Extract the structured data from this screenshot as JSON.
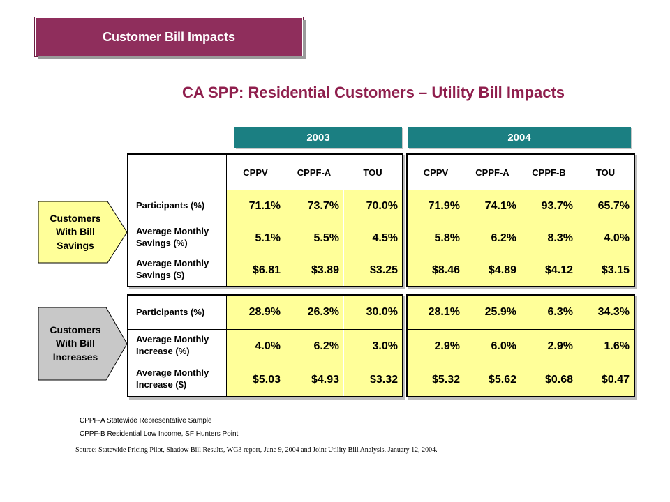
{
  "header": {
    "badge": "Customer Bill Impacts"
  },
  "title": "CA SPP: Residential Customers – Utility Bill Impacts",
  "years": {
    "y2003": "2003",
    "y2004": "2004"
  },
  "columns_2003": [
    "CPPV",
    "CPPF-A",
    "TOU"
  ],
  "columns_2004": [
    "CPPV",
    "CPPF-A",
    "CPPF-B",
    "TOU"
  ],
  "savings": {
    "side_label": {
      "line1": "Customers",
      "line2": "With Bill",
      "line3": "Savings"
    },
    "rows": [
      {
        "label_1": "Participants (%)",
        "label_2": "",
        "v2003": [
          "71.1%",
          "73.7%",
          "70.0%"
        ],
        "v2004": [
          "71.9%",
          "74.1%",
          "93.7%",
          "65.7%"
        ]
      },
      {
        "label_1": "Average Monthly",
        "label_2": "Savings (%)",
        "v2003": [
          "5.1%",
          "5.5%",
          "4.5%"
        ],
        "v2004": [
          "5.8%",
          "6.2%",
          "8.3%",
          "4.0%"
        ]
      },
      {
        "label_1": "Average Monthly",
        "label_2": "Savings ($)",
        "v2003": [
          "$6.81",
          "$3.89",
          "$3.25"
        ],
        "v2004": [
          "$8.46",
          "$4.89",
          "$4.12",
          "$3.15"
        ]
      }
    ]
  },
  "increases": {
    "side_label": {
      "line1": "Customers",
      "line2": "With Bill",
      "line3": "Increases"
    },
    "rows": [
      {
        "label_1": "Participants (%)",
        "label_2": "",
        "v2003": [
          "28.9%",
          "26.3%",
          "30.0%"
        ],
        "v2004": [
          "28.1%",
          "25.9%",
          "6.3%",
          "34.3%"
        ]
      },
      {
        "label_1": "Average Monthly",
        "label_2": "Increase (%)",
        "v2003": [
          "4.0%",
          "6.2%",
          "3.0%"
        ],
        "v2004": [
          "2.9%",
          "6.0%",
          "2.9%",
          "1.6%"
        ]
      },
      {
        "label_1": "Average Monthly",
        "label_2": "Increase ($)",
        "v2003": [
          "$5.03",
          "$4.93",
          "$3.32"
        ],
        "v2004": [
          "$5.32",
          "$5.62",
          "$0.68",
          "$0.47"
        ]
      }
    ]
  },
  "footnotes": {
    "note_a": "CPPF-A Statewide Representative Sample",
    "note_b": "CPPF-B Residential Low Income, SF Hunters Point",
    "source": "Source: Statewide Pricing Pilot, Shadow Bill Results, WG3 report, June 9, 2004 and Joint Utility Bill Analysis, January 12, 2004."
  },
  "colors": {
    "badge": "#8f2e5c",
    "title": "#8f1f4d",
    "year_bar": "#1b7f82",
    "cell_fill": "#ffff99",
    "arrow_savings": "#ffff99",
    "arrow_increases": "#c8c8c8"
  }
}
